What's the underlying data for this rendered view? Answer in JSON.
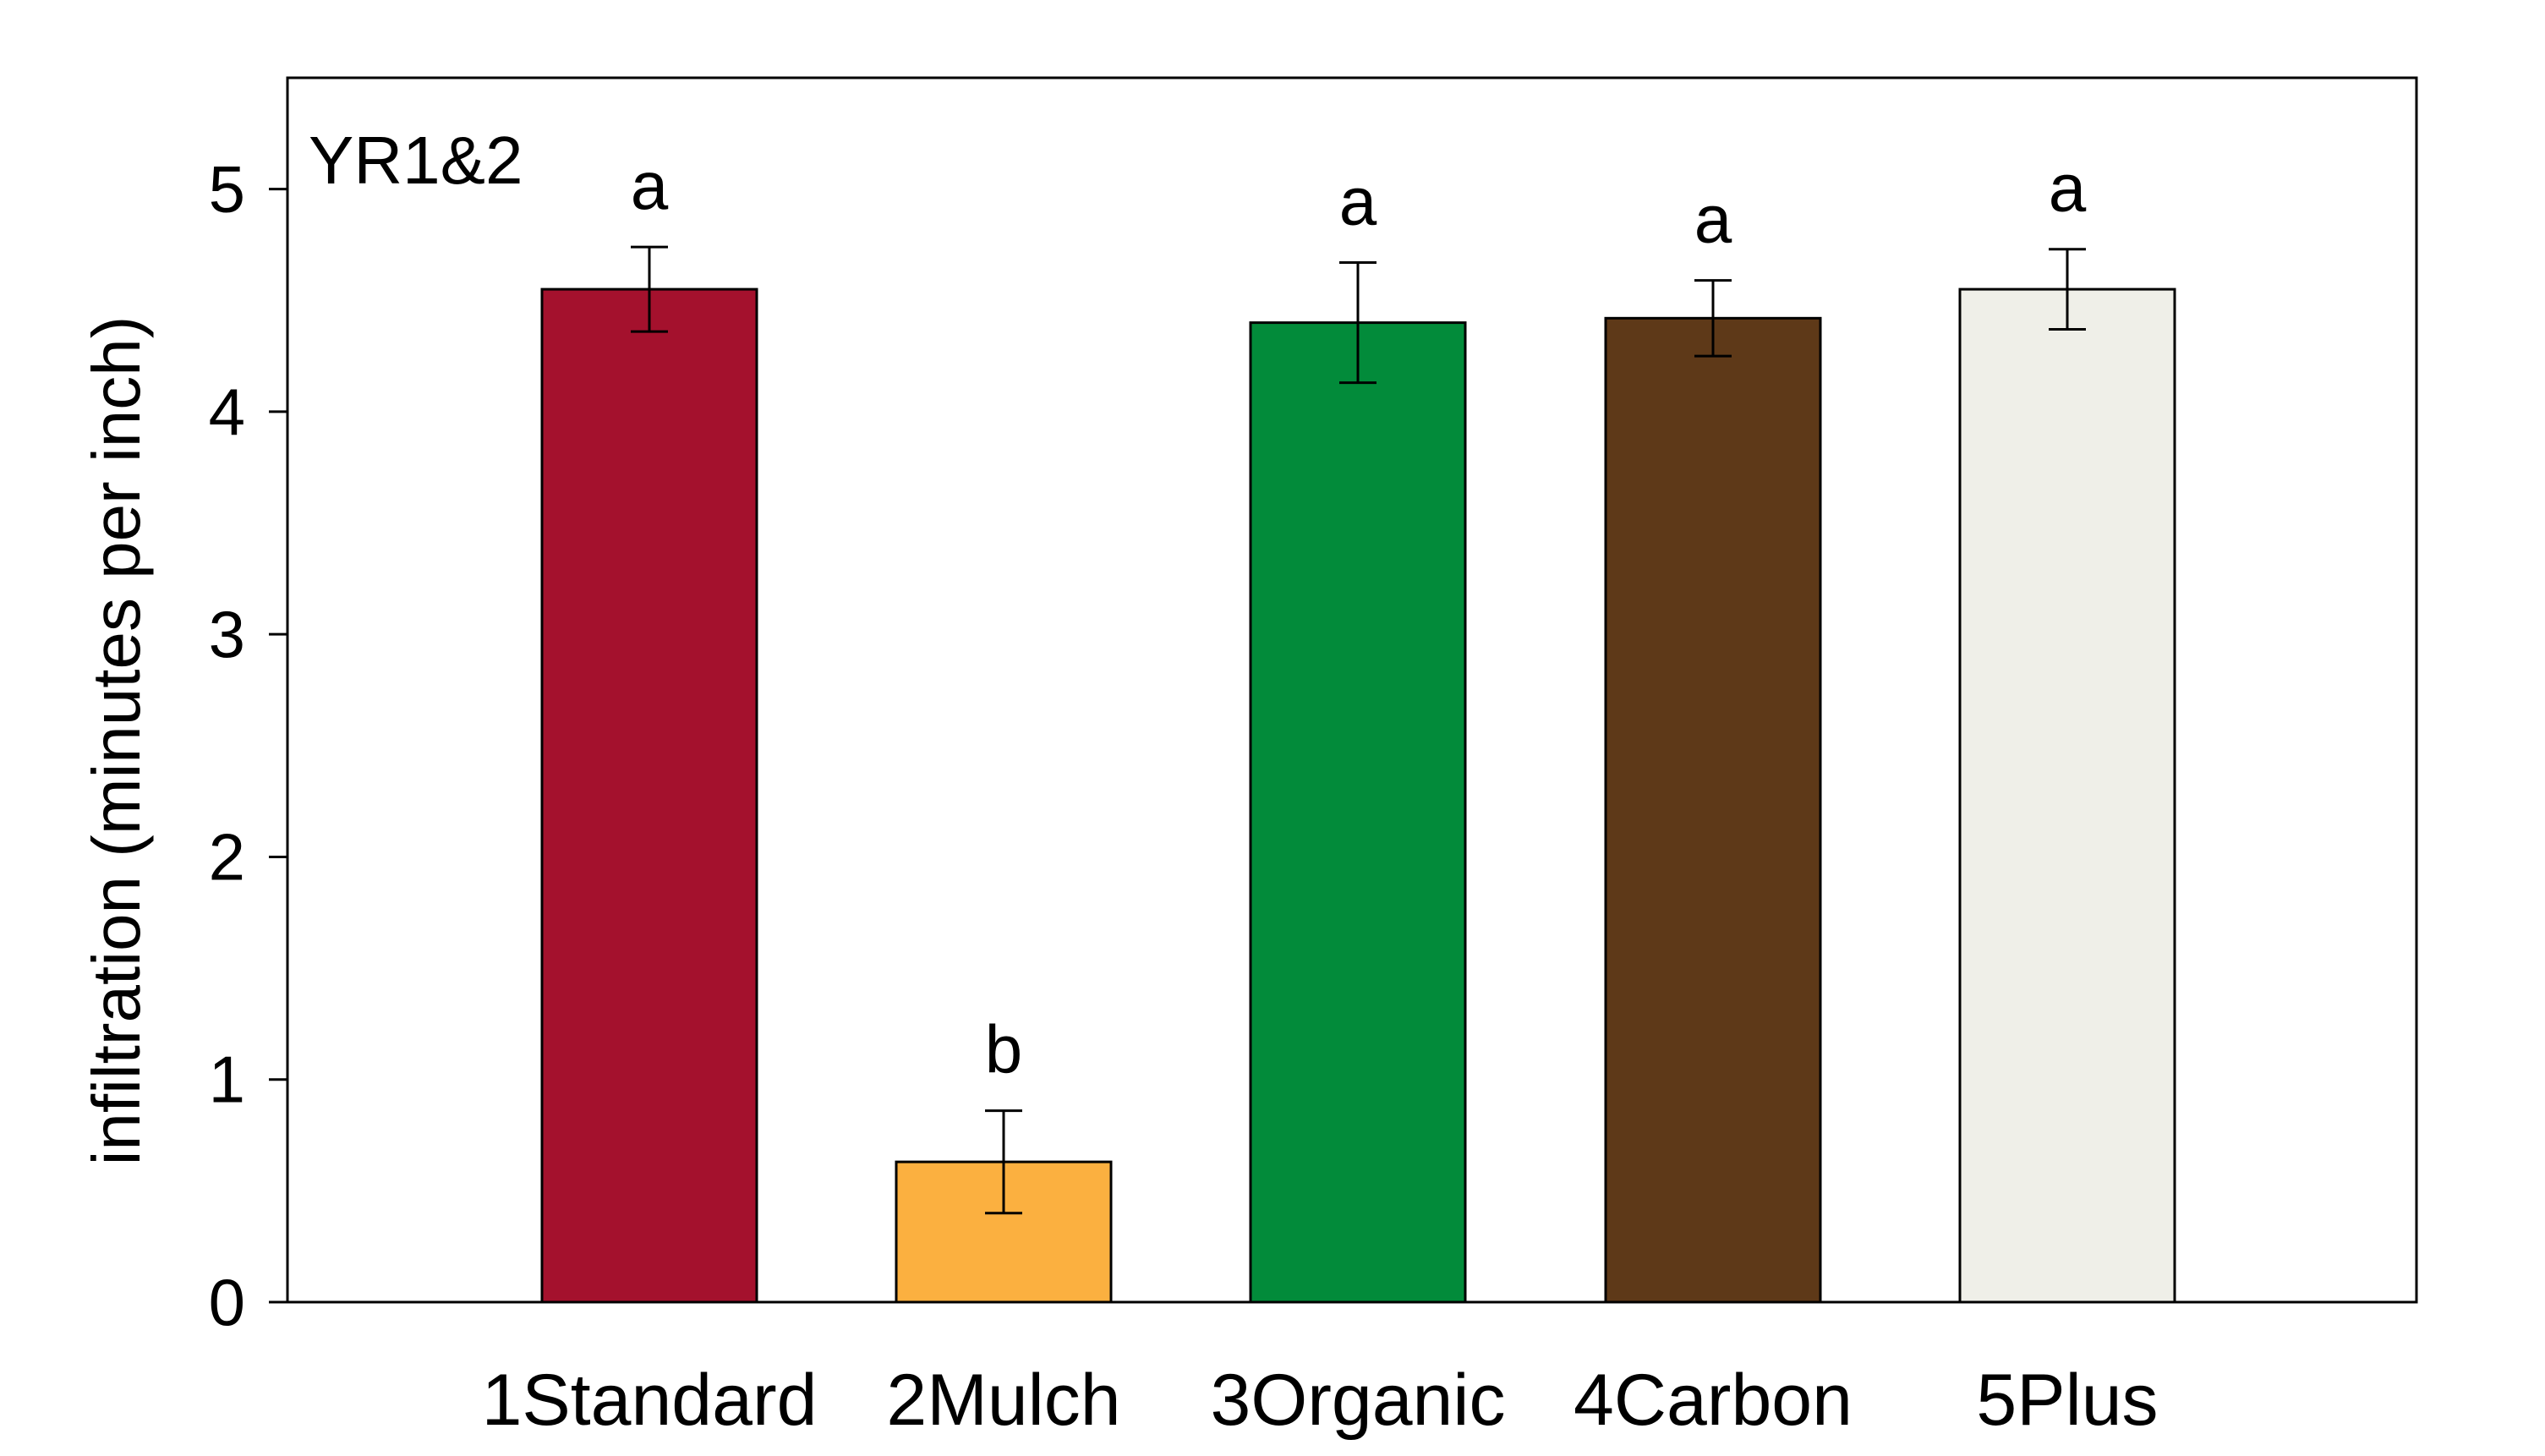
{
  "chart_data": {
    "type": "bar",
    "panel_label": "YR1&2",
    "ylabel": "infiltration (minutes per inch)",
    "xlabel": "",
    "ylim": [
      0,
      5.5
    ],
    "yticks": [
      0,
      1,
      2,
      3,
      4,
      5
    ],
    "categories": [
      "1Standard",
      "2Mulch",
      "3Organic",
      "4Carbon",
      "5Plus"
    ],
    "values": [
      4.55,
      0.63,
      4.4,
      4.42,
      4.55
    ],
    "errors": [
      0.19,
      0.23,
      0.27,
      0.17,
      0.18
    ],
    "significance": [
      "a",
      "b",
      "a",
      "a",
      "a"
    ],
    "colors": [
      "#a4112d",
      "#fbb040",
      "#028b3a",
      "#5e3918",
      "#efefe8"
    ],
    "grid": false,
    "legend": "none"
  }
}
